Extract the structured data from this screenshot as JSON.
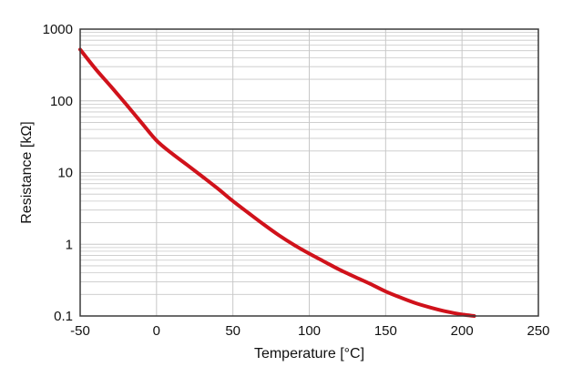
{
  "chart_data": {
    "type": "line",
    "title": "",
    "xlabel": "Temperature [°C]",
    "ylabel": "Resistance [kΩ]",
    "xlim": [
      -50,
      250
    ],
    "ylim": [
      0.1,
      1000
    ],
    "yscale": "log",
    "grid": true,
    "legend": "none",
    "x_ticks": [
      -50,
      0,
      50,
      100,
      150,
      200,
      250
    ],
    "x_tick_labels": [
      "-50",
      "0",
      "50",
      "100",
      "150",
      "200",
      "250"
    ],
    "y_ticks": [
      0.1,
      1,
      10,
      100,
      1000
    ],
    "y_tick_labels": [
      "0.1",
      "1",
      "10",
      "100",
      "1000"
    ],
    "series": [
      {
        "color": "#d0121b",
        "x": [
          -50,
          -40,
          -30,
          -20,
          -10,
          0,
          10,
          20,
          30,
          40,
          50,
          60,
          70,
          80,
          90,
          100,
          110,
          120,
          130,
          140,
          150,
          160,
          170,
          180,
          190,
          200,
          208
        ],
        "y": [
          520,
          280,
          160,
          90,
          50,
          28,
          18.5,
          12.8,
          8.8,
          6.0,
          4.0,
          2.75,
          1.9,
          1.34,
          0.98,
          0.74,
          0.57,
          0.44,
          0.35,
          0.28,
          0.22,
          0.18,
          0.15,
          0.13,
          0.115,
          0.105,
          0.1
        ]
      }
    ]
  },
  "colors": {
    "grid": "#c8c8c8",
    "frame": "#3a3a3a",
    "curve": "#d0121b"
  }
}
